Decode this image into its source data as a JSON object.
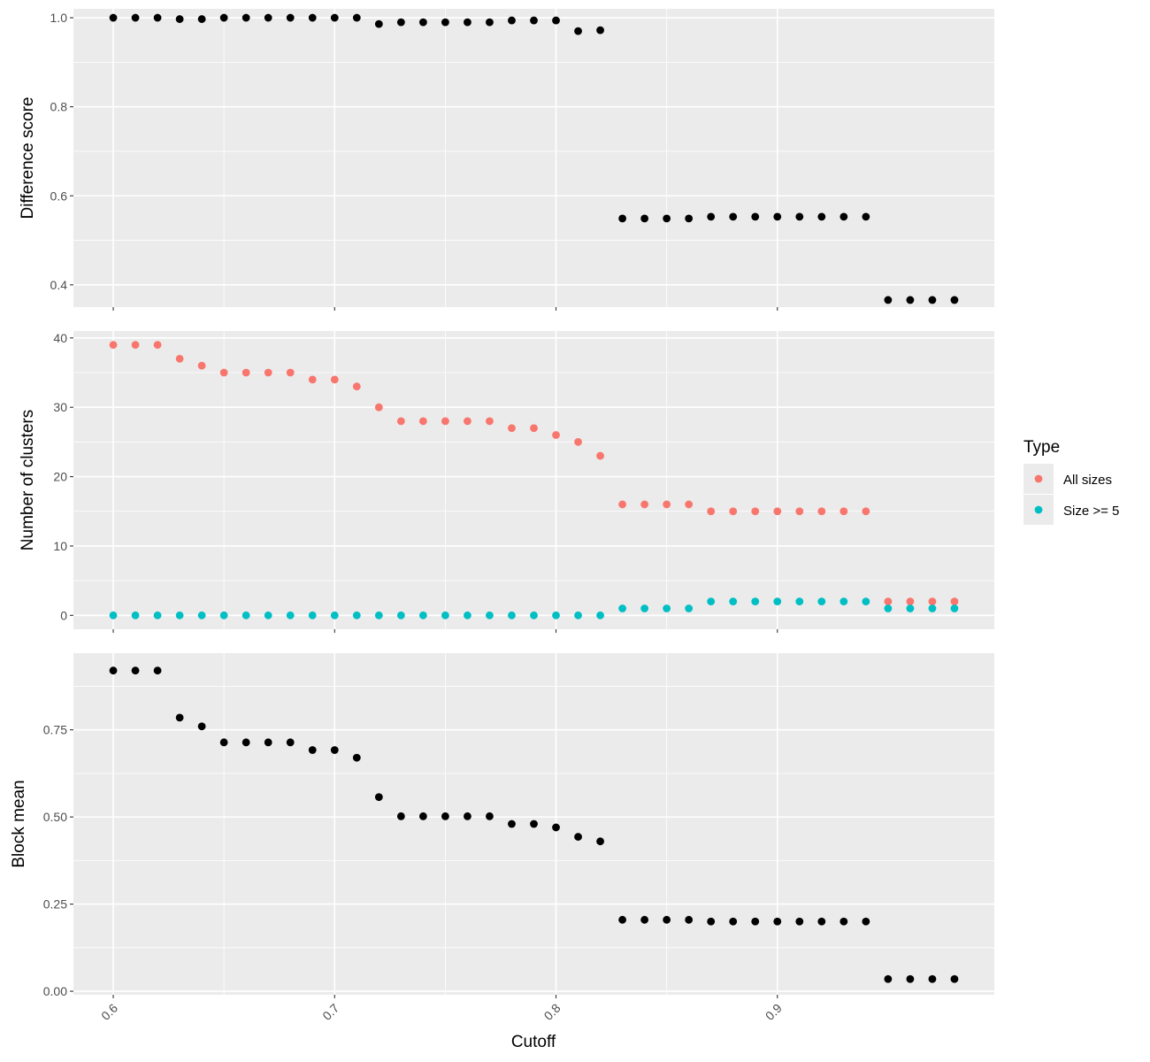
{
  "chart_data": {
    "type": "scatter",
    "x_label": "Cutoff",
    "x_range": [
      0.582,
      0.998
    ],
    "x_ticks": [
      0.6,
      0.7,
      0.8,
      0.9
    ],
    "x_tick_labels": [
      "0.6",
      "0.7",
      "0.8",
      "0.9"
    ],
    "x": [
      0.6,
      0.61,
      0.62,
      0.63,
      0.64,
      0.65,
      0.66,
      0.67,
      0.68,
      0.69,
      0.7,
      0.71,
      0.72,
      0.73,
      0.74,
      0.75,
      0.76,
      0.77,
      0.78,
      0.79,
      0.8,
      0.81,
      0.82,
      0.83,
      0.84,
      0.85,
      0.86,
      0.87,
      0.88,
      0.89,
      0.9,
      0.91,
      0.92,
      0.93,
      0.94,
      0.95,
      0.96,
      0.97,
      0.98
    ],
    "grid": true,
    "legend": {
      "title": "Type",
      "position": "right",
      "entries": [
        {
          "label": "All sizes",
          "color": "#F8766D"
        },
        {
          "label": "Size >= 5",
          "color": "#00BFC4"
        }
      ]
    },
    "panels": [
      {
        "id": "difference-score",
        "ylabel": "Difference score",
        "ylim": [
          0.35,
          1.02
        ],
        "y_ticks": [
          0.4,
          0.6,
          0.8,
          1.0
        ],
        "y_tick_labels": [
          "0.4",
          "0.6",
          "0.8",
          "1.0"
        ],
        "series": [
          {
            "color": "#000000",
            "values": [
              1.0,
              1.0,
              1.0,
              0.997,
              0.997,
              1.0,
              1.0,
              1.0,
              1.0,
              1.0,
              1.0,
              1.0,
              0.986,
              0.99,
              0.99,
              0.99,
              0.99,
              0.99,
              0.994,
              0.994,
              0.994,
              0.97,
              0.972,
              0.549,
              0.549,
              0.549,
              0.549,
              0.553,
              0.553,
              0.553,
              0.553,
              0.553,
              0.553,
              0.553,
              0.553,
              0.366,
              0.366,
              0.366,
              0.366
            ]
          }
        ]
      },
      {
        "id": "number-of-clusters",
        "ylabel": "Number of clusters",
        "ylim": [
          -2,
          41
        ],
        "y_ticks": [
          0,
          10,
          20,
          30,
          40
        ],
        "y_tick_labels": [
          "0",
          "10",
          "20",
          "30",
          "40"
        ],
        "series": [
          {
            "name": "All sizes",
            "color": "#F8766D",
            "values": [
              39,
              39,
              39,
              37,
              36,
              35,
              35,
              35,
              35,
              34,
              34,
              33,
              30,
              28,
              28,
              28,
              28,
              28,
              27,
              27,
              26,
              25,
              23,
              16,
              16,
              16,
              16,
              15,
              15,
              15,
              15,
              15,
              15,
              15,
              15,
              2,
              2,
              2,
              2
            ]
          },
          {
            "name": "Size >= 5",
            "color": "#00BFC4",
            "values": [
              0,
              0,
              0,
              0,
              0,
              0,
              0,
              0,
              0,
              0,
              0,
              0,
              0,
              0,
              0,
              0,
              0,
              0,
              0,
              0,
              0,
              0,
              0,
              1,
              1,
              1,
              1,
              2,
              2,
              2,
              2,
              2,
              2,
              2,
              2,
              1,
              1,
              1,
              1
            ]
          }
        ]
      },
      {
        "id": "block-mean",
        "ylabel": "Block mean",
        "ylim": [
          -0.01,
          0.97
        ],
        "y_ticks": [
          0.0,
          0.25,
          0.5,
          0.75
        ],
        "y_tick_labels": [
          "0.00",
          "0.25",
          "0.50",
          "0.75"
        ],
        "series": [
          {
            "color": "#000000",
            "values": [
              0.92,
              0.92,
              0.92,
              0.785,
              0.76,
              0.714,
              0.714,
              0.714,
              0.714,
              0.692,
              0.692,
              0.67,
              0.557,
              0.502,
              0.502,
              0.502,
              0.502,
              0.502,
              0.48,
              0.48,
              0.47,
              0.443,
              0.43,
              0.205,
              0.205,
              0.205,
              0.205,
              0.2,
              0.2,
              0.2,
              0.2,
              0.2,
              0.2,
              0.2,
              0.2,
              0.035,
              0.035,
              0.035,
              0.035
            ]
          }
        ]
      }
    ]
  }
}
